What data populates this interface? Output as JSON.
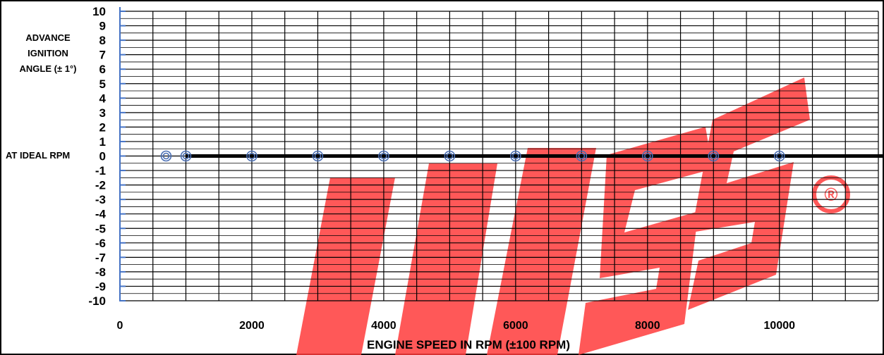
{
  "chart_data": {
    "type": "scatter",
    "title": "",
    "ylabel_lines": [
      "ADVANCE",
      "IGNITION",
      "ANGLE (± 1°)"
    ],
    "xlabel": "ENGINE SPEED IN RPM (±100 RPM)",
    "reference_line_label": "AT IDEAL RPM",
    "reference_line_y": 0,
    "xlim": [
      0,
      11500
    ],
    "ylim": [
      -10,
      10
    ],
    "x_ticks": [
      0,
      2000,
      4000,
      6000,
      8000,
      10000
    ],
    "x_tick_labels": [
      "0",
      "2000",
      "4000",
      "6000",
      "8000",
      "10000"
    ],
    "y_ticks": [
      10,
      9,
      8,
      7,
      6,
      5,
      4,
      3,
      2,
      1,
      0,
      -1,
      -2,
      -3,
      -4,
      -5,
      -6,
      -7,
      -8,
      -9,
      -10
    ],
    "y_tick_labels": [
      "10",
      "9",
      "8",
      "7",
      "6",
      "5",
      "4",
      "3",
      "2",
      "1",
      "0",
      "-1",
      "-2",
      "-3",
      "-4",
      "-5",
      "-6",
      "-7",
      "-8",
      "-9",
      "-10"
    ],
    "grid": true,
    "legend": "none",
    "series": [
      {
        "x": [
          700,
          1000,
          2000,
          3000,
          4000,
          5000,
          6000,
          7000,
          8000,
          9000,
          10000
        ],
        "y": [
          0,
          0,
          0,
          0,
          0,
          0,
          0,
          0,
          0,
          0,
          0
        ]
      }
    ],
    "colors": {
      "marker": "#4a6fb5",
      "axis": "#4472c4",
      "grid": "#000000",
      "reference_line": "#000000"
    }
  },
  "watermark": {
    "text": "MS",
    "registered_mark": "®",
    "color": "#ff4d4d"
  }
}
